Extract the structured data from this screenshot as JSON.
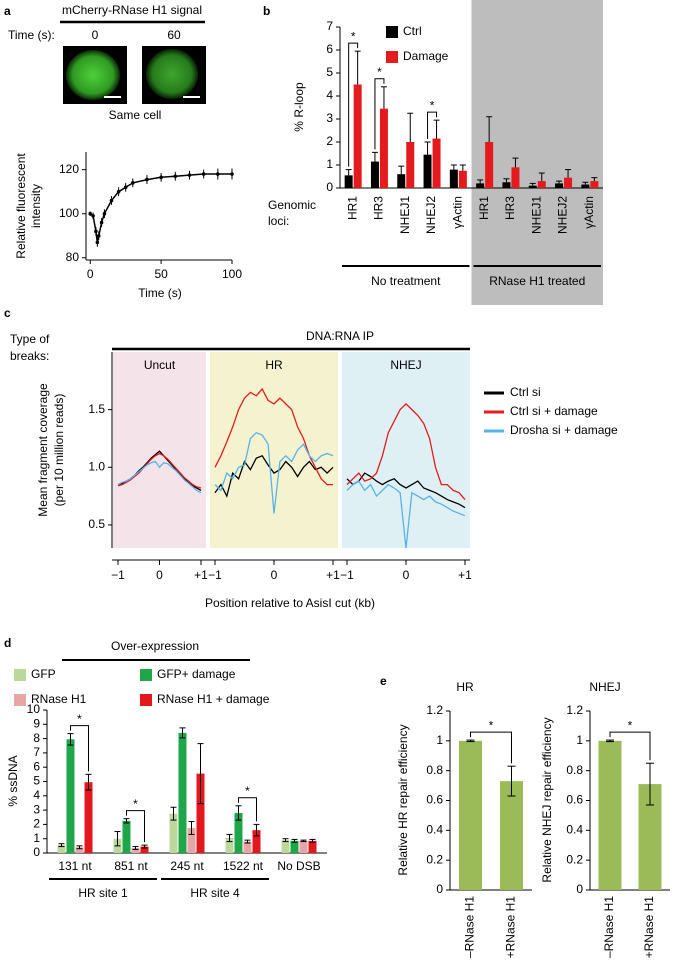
{
  "chart_data": [
    {
      "label": "a",
      "type": "line",
      "header": {
        "title": "mCherry-RNase H1 signal",
        "time_label": "Time (s):",
        "times": [
          "0",
          "60"
        ],
        "caption": "Same cell"
      },
      "xlabel": "Time (s)",
      "ylabel": [
        "Relative fluorescent",
        "intensity"
      ],
      "x": [
        0,
        2,
        4,
        5,
        6,
        8,
        10,
        15,
        20,
        25,
        30,
        40,
        50,
        60,
        70,
        80,
        90,
        100
      ],
      "values": [
        100,
        99,
        92,
        87,
        90,
        96,
        100,
        106,
        110,
        112,
        114,
        115.5,
        116.5,
        117,
        117.5,
        118,
        118,
        118
      ],
      "errors": [
        1,
        1.5,
        2,
        2,
        2,
        2,
        2,
        2,
        2,
        2,
        2,
        2,
        2,
        2,
        2,
        2,
        2.5,
        2.5
      ],
      "color": "#000000",
      "xlim": [
        -3,
        100
      ],
      "xticks": [
        0,
        50,
        100
      ],
      "ylim": [
        79,
        128
      ],
      "yticks": [
        80,
        100,
        120
      ]
    },
    {
      "label": "b",
      "type": "bar",
      "ylabel": "% R-loop",
      "row_label": [
        "Genomic",
        "loci:"
      ],
      "significance_label": "*",
      "groups": [
        {
          "name": "No treatment",
          "categories": [
            "HR1",
            "HR3",
            "NHEJ1",
            "NHEJ2",
            "γActin"
          ],
          "significant": [
            true,
            true,
            false,
            true,
            false
          ]
        },
        {
          "name": "RNase H1 treated",
          "shade_color": "#bdbdbd",
          "categories": [
            "HR1",
            "HR3",
            "NHEJ1",
            "NHEJ2",
            "γActin"
          ],
          "significant": [
            false,
            false,
            false,
            false,
            false
          ]
        }
      ],
      "series": [
        {
          "name": "Ctrl",
          "color": "#000000",
          "compare": true,
          "values": [
            0.55,
            1.15,
            0.6,
            1.45,
            0.8,
            0.2,
            0.25,
            0.1,
            0.2,
            0.15
          ],
          "errors": [
            0.25,
            0.4,
            0.35,
            0.55,
            0.2,
            0.15,
            0.15,
            0.1,
            0.1,
            0.1
          ]
        },
        {
          "name": "Damage",
          "color": "#e41a1c",
          "compare": true,
          "values": [
            4.5,
            3.45,
            2.0,
            2.15,
            0.75,
            2.0,
            0.9,
            0.3,
            0.45,
            0.3
          ],
          "errors": [
            1.45,
            0.95,
            1.25,
            0.8,
            0.25,
            1.1,
            0.4,
            0.35,
            0.35,
            0.15
          ]
        }
      ],
      "ylim": [
        0,
        7
      ],
      "yticks": [
        0,
        1,
        2,
        3,
        4,
        5,
        6,
        7
      ]
    },
    {
      "label": "c",
      "type": "line",
      "row_label": [
        "Type of",
        "breaks:"
      ],
      "title": "DNA:RNA IP",
      "ylabel": [
        "Mean fragment coverage",
        "(per 10 million reads)"
      ],
      "xlabel": "Position relative to AsisI cut (kb)",
      "x": [
        -1,
        -0.9,
        -0.8,
        -0.7,
        -0.6,
        -0.5,
        -0.4,
        -0.3,
        -0.2,
        -0.1,
        0,
        0.1,
        0.2,
        0.3,
        0.4,
        0.5,
        0.6,
        0.7,
        0.8,
        0.9,
        1
      ],
      "xlim": [
        -1,
        1
      ],
      "xticks": [
        {
          "value": -1,
          "label": "−1"
        },
        0,
        {
          "value": 1,
          "label": "+1"
        }
      ],
      "ylim": [
        0.3,
        2.0
      ],
      "yticks": [
        0.5,
        {
          "value": 1,
          "label": "1.0"
        },
        1.5
      ],
      "series": [
        {
          "name": "Ctrl si",
          "color": "#000000"
        },
        {
          "name": "Ctrl si + damage",
          "color": "#e41a1c"
        },
        {
          "name": "Drosha si + damage",
          "color": "#56b4e9"
        }
      ],
      "panels": [
        {
          "title": "Uncut",
          "background": "#f5e3ea",
          "values": [
            [
              0.85,
              0.86,
              0.88,
              0.9,
              0.93,
              0.97,
              1.0,
              1.04,
              1.08,
              1.11,
              1.14,
              1.1,
              1.06,
              1.02,
              0.98,
              0.94,
              0.9,
              0.87,
              0.84,
              0.82,
              0.8
            ],
            [
              0.84,
              0.85,
              0.87,
              0.89,
              0.92,
              0.95,
              0.99,
              1.03,
              1.07,
              1.1,
              1.12,
              1.1,
              1.07,
              1.03,
              0.99,
              0.95,
              0.91,
              0.88,
              0.85,
              0.83,
              0.82
            ],
            [
              0.85,
              0.87,
              0.88,
              0.9,
              0.93,
              0.96,
              0.99,
              1.02,
              1.04,
              1.05,
              1.0,
              1.04,
              1.03,
              1.0,
              0.97,
              0.93,
              0.89,
              0.86,
              0.83,
              0.8,
              0.78
            ]
          ]
        },
        {
          "title": "HR",
          "background": "#f5f3cf",
          "values": [
            [
              0.78,
              0.85,
              0.75,
              0.95,
              0.9,
              1.05,
              0.98,
              1.08,
              1.1,
              1.02,
              0.95,
              0.98,
              1.05,
              1.0,
              0.92,
              1.0,
              1.05,
              0.98,
              1.0,
              0.95,
              1.0
            ],
            [
              1.0,
              1.1,
              1.22,
              1.35,
              1.5,
              1.6,
              1.65,
              1.62,
              1.68,
              1.58,
              1.55,
              1.6,
              1.55,
              1.5,
              1.35,
              1.25,
              1.1,
              1.0,
              0.9,
              0.85,
              0.85
            ],
            [
              0.85,
              0.8,
              0.95,
              0.9,
              1.0,
              1.02,
              1.25,
              1.3,
              1.28,
              1.2,
              0.6,
              1.05,
              1.1,
              1.05,
              1.15,
              1.2,
              1.1,
              1.05,
              1.1,
              1.12,
              1.1
            ]
          ]
        },
        {
          "title": "NHEJ",
          "background": "#dff0f5",
          "values": [
            [
              0.9,
              0.85,
              0.88,
              0.95,
              0.92,
              0.88,
              0.85,
              0.88,
              0.9,
              0.85,
              0.82,
              0.85,
              0.88,
              0.82,
              0.8,
              0.78,
              0.75,
              0.72,
              0.7,
              0.68,
              0.65
            ],
            [
              0.85,
              0.9,
              0.95,
              0.88,
              0.9,
              0.95,
              1.1,
              1.3,
              1.4,
              1.5,
              1.55,
              1.5,
              1.45,
              1.38,
              1.25,
              1.0,
              0.85,
              0.85,
              0.8,
              0.78,
              0.72
            ],
            [
              0.8,
              0.85,
              0.88,
              0.8,
              0.85,
              0.75,
              0.8,
              0.85,
              0.82,
              0.78,
              0.3,
              0.78,
              0.75,
              0.72,
              0.75,
              0.7,
              0.68,
              0.65,
              0.62,
              0.6,
              0.58
            ]
          ]
        }
      ]
    },
    {
      "label": "d",
      "type": "bar",
      "header": "Over-expression",
      "ylabel": "% ssDNA",
      "significance_label": "*",
      "groups": [
        {
          "name": "HR site 1",
          "categories": [
            "131 nt",
            "851 nt"
          ],
          "significant": [
            true,
            true
          ]
        },
        {
          "name": "HR site 4",
          "categories": [
            "245 nt",
            "1522 nt"
          ],
          "significant": [
            false,
            true
          ]
        },
        {
          "categories": [
            "No DSB"
          ],
          "significant": [
            false
          ]
        }
      ],
      "series": [
        {
          "name": "GFP",
          "color": "#b9d89a",
          "values": [
            0.55,
            1.0,
            2.75,
            1.05,
            0.9
          ],
          "errors": [
            0.1,
            0.5,
            0.45,
            0.25,
            0.1
          ]
        },
        {
          "name": "GFP+ damage",
          "color": "#1fa64a",
          "compare": true,
          "values": [
            7.95,
            2.25,
            8.4,
            2.8,
            0.85
          ],
          "errors": [
            0.4,
            0.15,
            0.35,
            0.5,
            0.1
          ]
        },
        {
          "name": "RNase H1",
          "color": "#e8a5a5",
          "values": [
            0.4,
            0.35,
            1.75,
            0.8,
            0.85
          ],
          "errors": [
            0.1,
            0.1,
            0.45,
            0.1,
            0.05
          ]
        },
        {
          "name": "RNase H1 + damage",
          "color": "#e4181c",
          "compare": true,
          "values": [
            4.95,
            0.45,
            5.55,
            1.6,
            0.85
          ],
          "errors": [
            0.55,
            0.1,
            2.1,
            0.4,
            0.1
          ]
        }
      ],
      "ylim": [
        0,
        10
      ],
      "yticks": [
        0,
        1,
        2,
        3,
        4,
        5,
        6,
        7,
        8,
        9,
        10
      ]
    },
    {
      "label": "e",
      "type": "bar",
      "title": "HR",
      "ylabel": "Relative HR repair efficiency",
      "significance_label": "*",
      "significant": true,
      "categories": [
        "–RNase H1",
        "+RNase H1"
      ],
      "values": [
        1,
        0.73
      ],
      "errors": [
        0.005,
        0.1
      ],
      "color": "#9bbb59",
      "ylim": [
        0,
        1.2
      ],
      "yticks": [
        0,
        0.2,
        0.4,
        0.6,
        0.8,
        1,
        1.2
      ]
    },
    {
      "type": "bar",
      "title": "NHEJ",
      "ylabel": "Relative NHEJ repair efficiency",
      "significance_label": "*",
      "significant": true,
      "categories": [
        "–RNase H1",
        "+RNase H1"
      ],
      "values": [
        1,
        0.71
      ],
      "errors": [
        0.005,
        0.14
      ],
      "color": "#9bbb59",
      "ylim": [
        0,
        1.2
      ],
      "yticks": [
        0,
        0.2,
        0.4,
        0.6,
        0.8,
        1,
        1.2
      ]
    }
  ]
}
